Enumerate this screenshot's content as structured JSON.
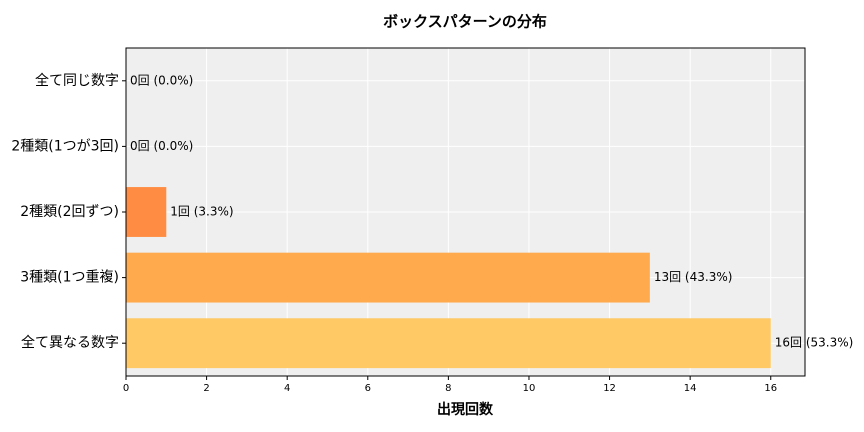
{
  "chart_data": {
    "type": "barh",
    "title": "ボックスパターンの分布",
    "xlabel": "出現回数",
    "categories": [
      "全て同じ数字",
      "2種類(1つが3回)",
      "2種類(2回ずつ)",
      "3種類(1つ重複)",
      "全て異なる数字"
    ],
    "values": [
      0,
      0,
      1,
      13,
      16
    ],
    "value_labels": [
      "0回 (0.0%)",
      "0回 (0.0%)",
      "1回 (3.3%)",
      "13回 (43.3%)",
      "16回 (53.3%)"
    ],
    "colors": [
      "#ff7f3f",
      "#ff7f3f",
      "#ff8c42",
      "#ffaa4c",
      "#ffc966"
    ],
    "xlim": [
      0,
      16.85
    ],
    "xticks": [
      0,
      2,
      4,
      6,
      8,
      10,
      12,
      14,
      16
    ],
    "grid": true
  }
}
